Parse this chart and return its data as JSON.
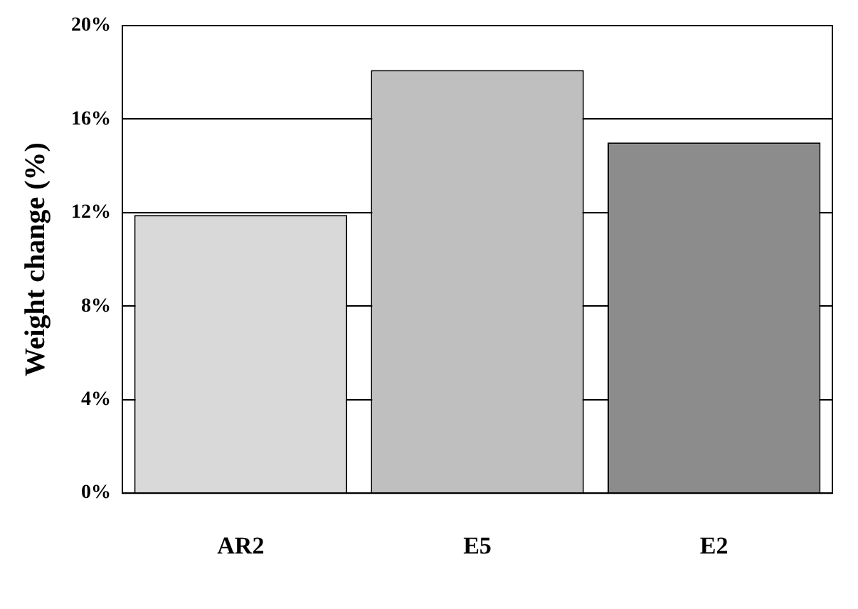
{
  "chart_data": {
    "type": "bar",
    "ylabel": "Weight change (%)",
    "categories": [
      "AR2",
      "E5",
      "E2"
    ],
    "values": [
      11.9,
      18.1,
      15.0
    ],
    "colors": [
      "#d9d9d9",
      "#bfbfbf",
      "#8c8c8c"
    ],
    "ylim": [
      0,
      20
    ],
    "yticks": [
      {
        "value": 0,
        "label": "0%"
      },
      {
        "value": 4,
        "label": "4%"
      },
      {
        "value": 8,
        "label": "8%"
      },
      {
        "value": 12,
        "label": "12%"
      },
      {
        "value": 16,
        "label": "16%"
      },
      {
        "value": 20,
        "label": "20%"
      }
    ],
    "grid": "y"
  }
}
